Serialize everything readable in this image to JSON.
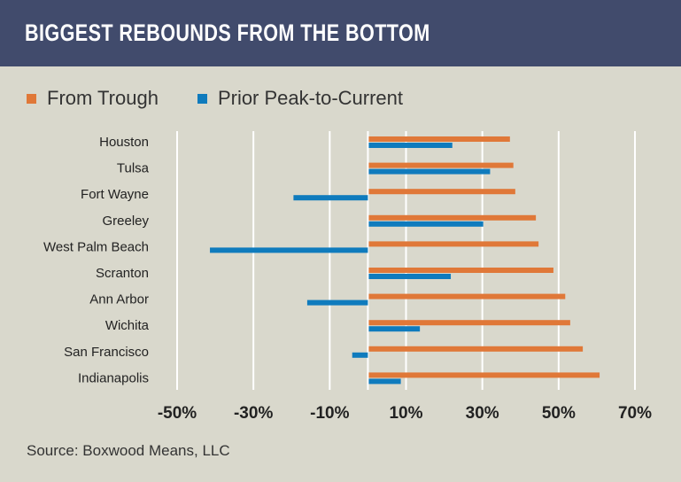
{
  "header": {
    "title": "BIGGEST REBOUNDS FROM THE BOTTOM"
  },
  "source": "Source: Boxwood Means, LLC",
  "colors": {
    "header_bg": "#414b6c",
    "background": "#d9d8cc",
    "from_trough": "#e07838",
    "prior_peak": "#0f7bbd"
  },
  "chart_data": {
    "type": "bar",
    "orientation": "horizontal",
    "title": "BIGGEST REBOUNDS FROM THE BOTTOM",
    "categories": [
      "Houston",
      "Tulsa",
      "Fort Wayne",
      "Greeley",
      "West Palm Beach",
      "Scranton",
      "Ann Arbor",
      "Wichita",
      "San Francisco",
      "Indianapolis"
    ],
    "series": [
      {
        "name": "From Trough",
        "color": "#e07838",
        "values": [
          37.0,
          37.9,
          38.4,
          43.8,
          44.5,
          48.4,
          51.5,
          52.8,
          56.1,
          60.5
        ]
      },
      {
        "name": "Prior Peak-to-Current",
        "color": "#0f7bbd",
        "values": [
          21.9,
          31.8,
          -19.5,
          30.0,
          -41.4,
          21.5,
          -15.9,
          13.4,
          -4.1,
          8.4
        ]
      }
    ],
    "xlim": [
      -50,
      70
    ],
    "xticks": [
      -50,
      -30,
      -10,
      10,
      30,
      50,
      70
    ],
    "xtick_labels": [
      "-50%",
      "-30%",
      "-10%",
      "10%",
      "30%",
      "50%",
      "70%"
    ],
    "grid": true,
    "legend": "top-left",
    "xlabel": "",
    "ylabel": ""
  }
}
